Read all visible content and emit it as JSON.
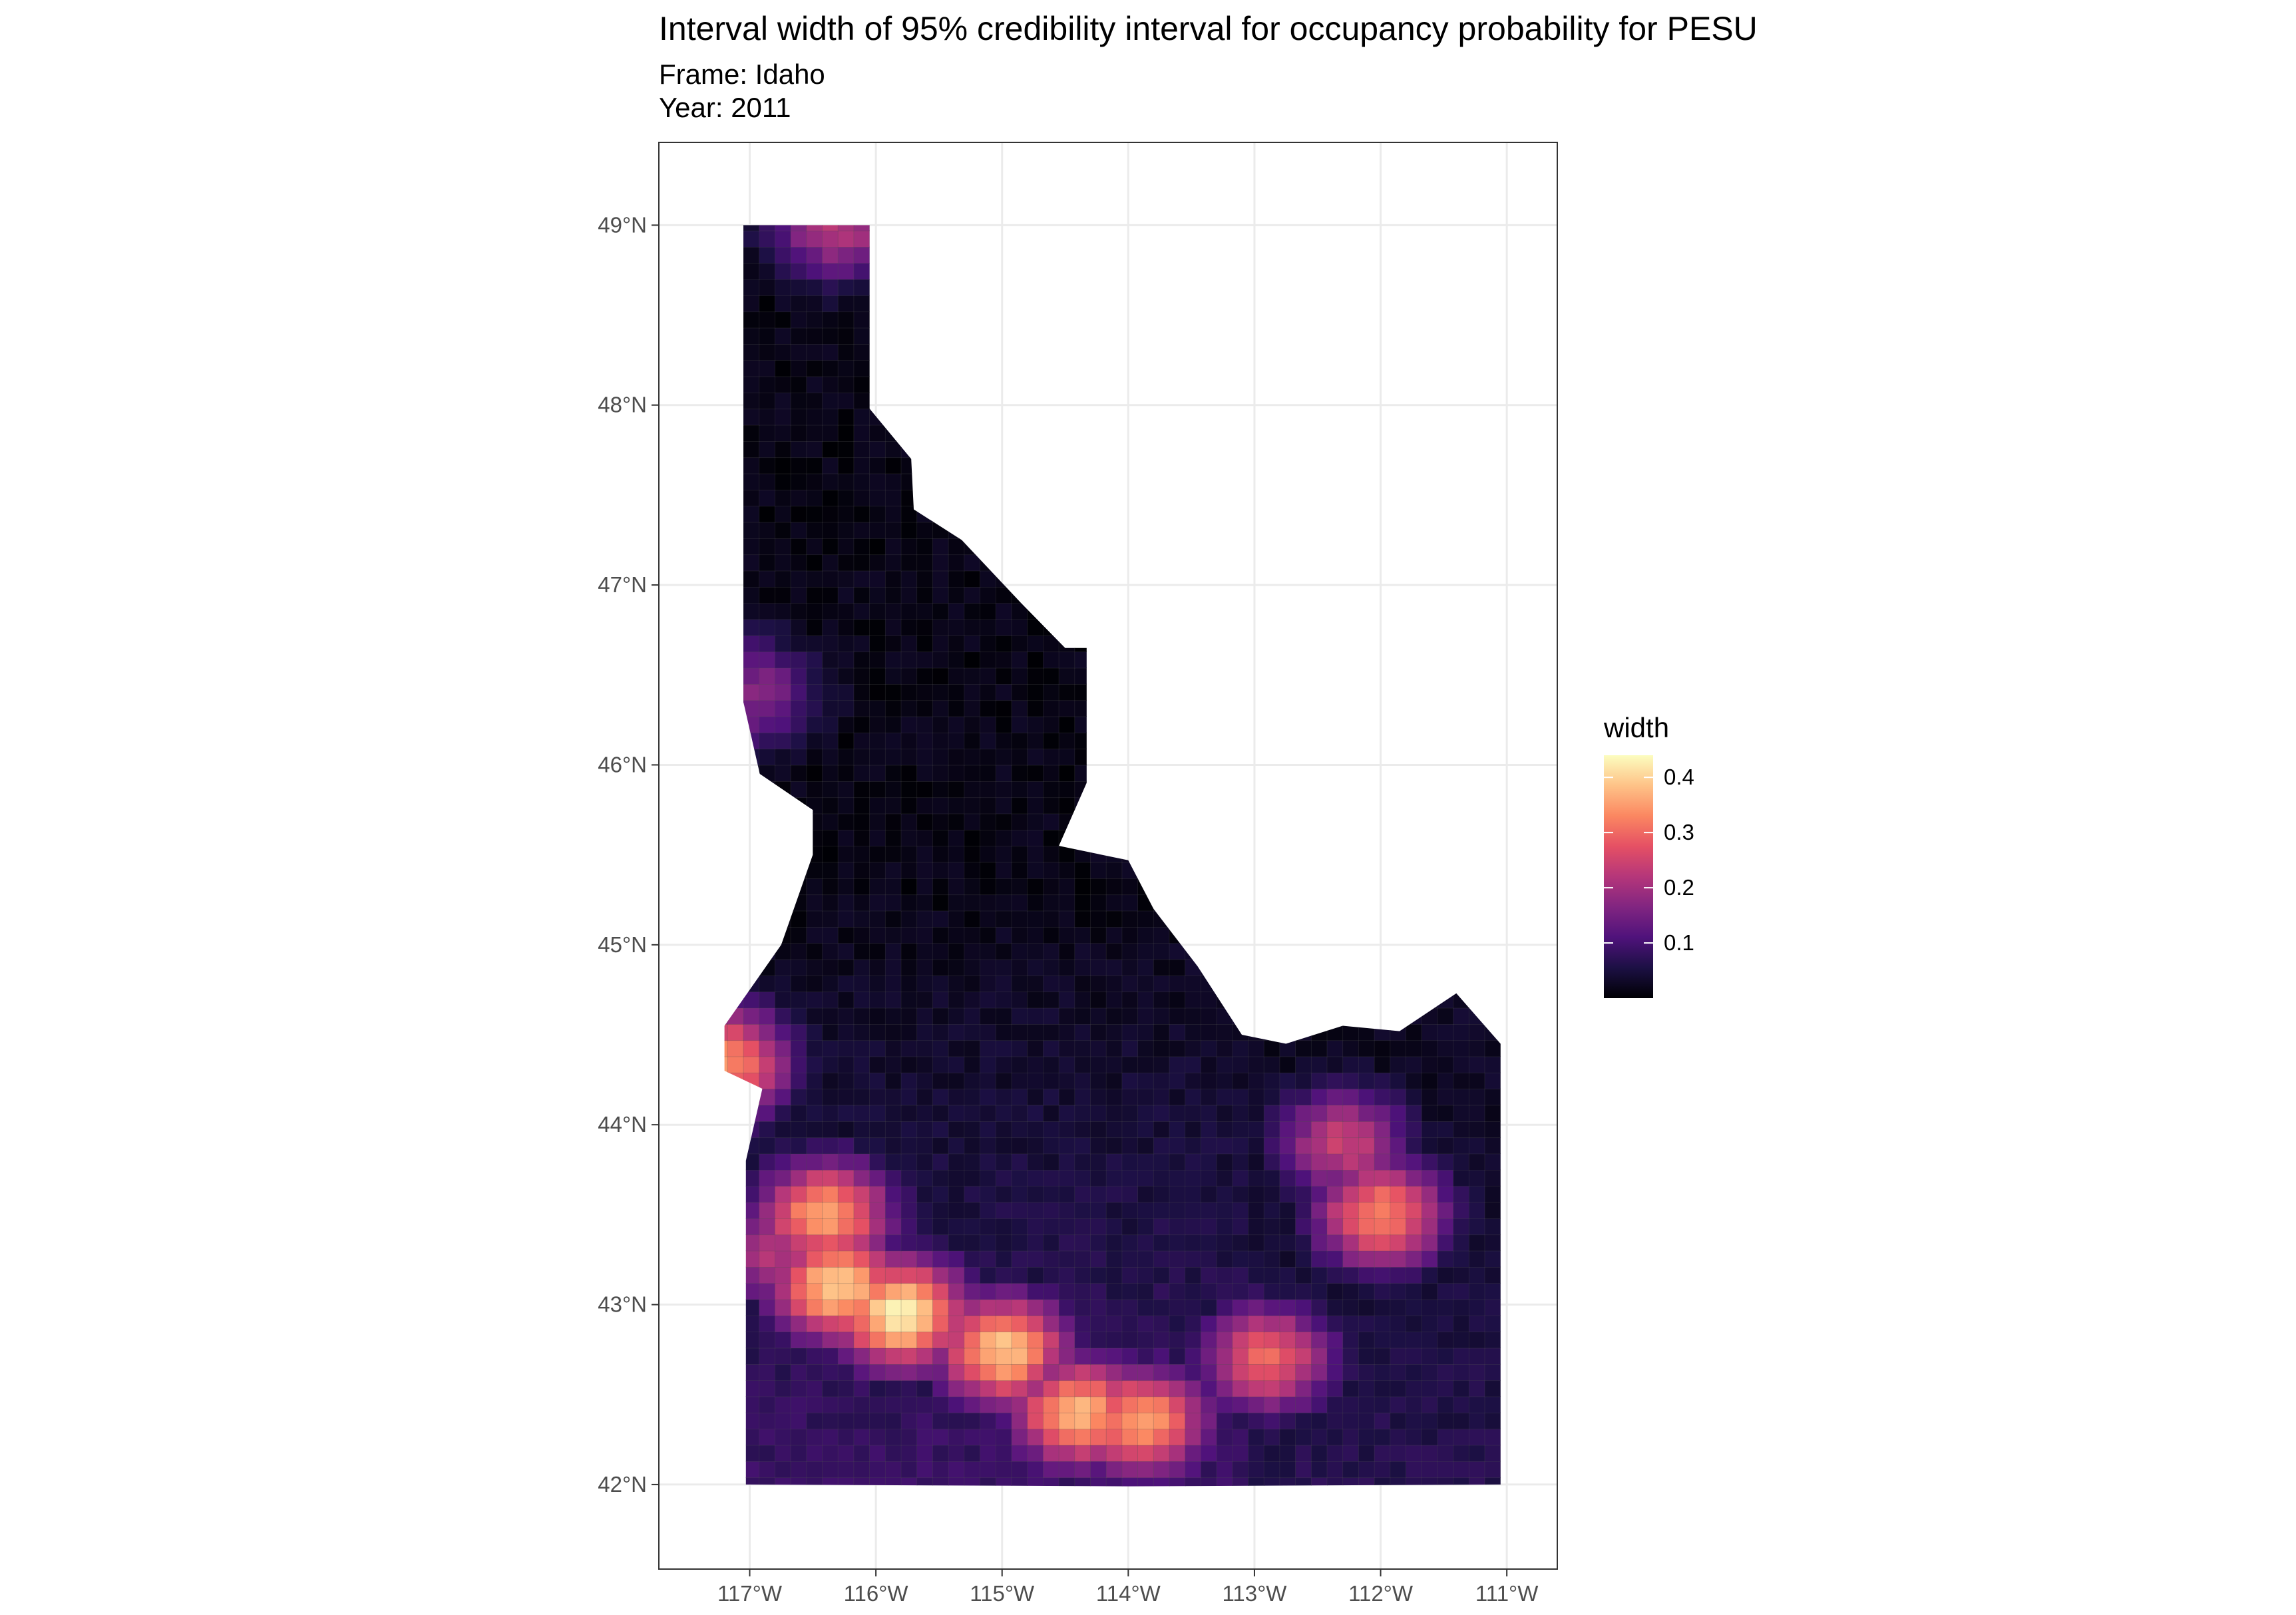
{
  "title": "Interval width of 95% credibility interval for occupancy probability for PESU",
  "subtitle_lines": [
    "Frame: Idaho",
    "Year: 2011"
  ],
  "chart_data": {
    "type": "heatmap",
    "description_basis": "Gridded raster of interval width over Idaho",
    "x_axis": {
      "ticks": [
        -117,
        -116,
        -115,
        -114,
        -113,
        -112,
        -111
      ],
      "tick_labels": [
        "117°W",
        "116°W",
        "115°W",
        "114°W",
        "113°W",
        "112°W",
        "111°W"
      ],
      "range": [
        -117.72,
        -110.6
      ]
    },
    "y_axis": {
      "ticks": [
        42,
        43,
        44,
        45,
        46,
        47,
        48,
        49
      ],
      "tick_labels": [
        "42°N",
        "43°N",
        "44°N",
        "45°N",
        "46°N",
        "47°N",
        "48°N",
        "49°N"
      ],
      "range": [
        41.53,
        49.46
      ]
    },
    "legend": {
      "title": "width",
      "placement": "right",
      "breaks": [
        0.1,
        0.2,
        0.3,
        0.4
      ],
      "break_labels": [
        "0.1",
        "0.2",
        "0.3",
        "0.4"
      ],
      "range": [
        0.0,
        0.44
      ],
      "colormap": "magma"
    },
    "grid": true,
    "hotspots": [
      {
        "lon": -115.8,
        "lat": 42.95,
        "width": 0.43
      },
      {
        "lon": -116.3,
        "lat": 43.1,
        "width": 0.4
      },
      {
        "lon": -116.4,
        "lat": 43.5,
        "width": 0.36
      },
      {
        "lon": -115.0,
        "lat": 42.75,
        "width": 0.39
      },
      {
        "lon": -114.4,
        "lat": 42.4,
        "width": 0.37
      },
      {
        "lon": -113.9,
        "lat": 42.35,
        "width": 0.36
      },
      {
        "lon": -112.0,
        "lat": 43.5,
        "width": 0.33
      },
      {
        "lon": -112.3,
        "lat": 43.9,
        "width": 0.24
      },
      {
        "lon": -112.9,
        "lat": 42.7,
        "width": 0.3
      },
      {
        "lon": -117.2,
        "lat": 44.35,
        "width": 0.34
      },
      {
        "lon": -116.8,
        "lat": 43.3,
        "width": 0.22
      },
      {
        "lon": -116.3,
        "lat": 49.0,
        "width": 0.22
      },
      {
        "lon": -117.0,
        "lat": 46.4,
        "width": 0.17
      }
    ],
    "outline_points": [
      [
        -117.05,
        49.0
      ],
      [
        -116.05,
        49.0
      ],
      [
        -116.05,
        48.5
      ],
      [
        -116.05,
        47.98
      ],
      [
        -115.72,
        47.7
      ],
      [
        -115.7,
        47.42
      ],
      [
        -115.32,
        47.25
      ],
      [
        -114.85,
        46.9
      ],
      [
        -114.5,
        46.65
      ],
      [
        -114.33,
        46.65
      ],
      [
        -114.33,
        45.9
      ],
      [
        -114.55,
        45.55
      ],
      [
        -114.0,
        45.47
      ],
      [
        -113.8,
        45.2
      ],
      [
        -113.45,
        44.88
      ],
      [
        -113.1,
        44.5
      ],
      [
        -112.75,
        44.45
      ],
      [
        -112.3,
        44.55
      ],
      [
        -111.85,
        44.52
      ],
      [
        -111.4,
        44.73
      ],
      [
        -111.05,
        44.45
      ],
      [
        -111.05,
        42.0
      ],
      [
        -114.0,
        41.99
      ],
      [
        -117.03,
        42.0
      ],
      [
        -117.03,
        43.8
      ],
      [
        -116.9,
        44.2
      ],
      [
        -117.2,
        44.3
      ],
      [
        -117.2,
        44.55
      ],
      [
        -116.75,
        45.0
      ],
      [
        -116.5,
        45.5
      ],
      [
        -116.5,
        45.75
      ],
      [
        -116.92,
        45.95
      ],
      [
        -117.05,
        46.35
      ],
      [
        -117.05,
        49.0
      ]
    ]
  }
}
